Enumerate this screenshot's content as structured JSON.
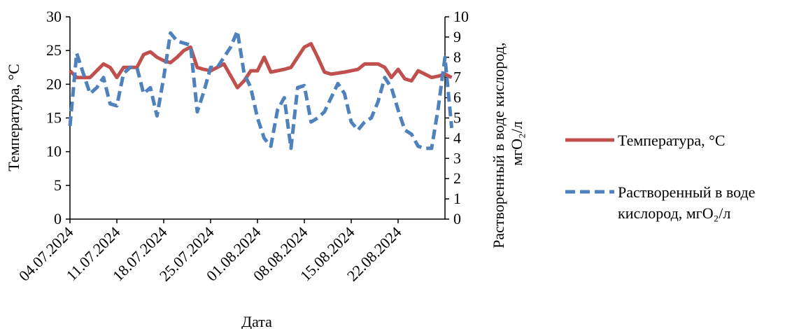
{
  "chart_data": {
    "type": "line",
    "title": "",
    "xlabel": "Дата",
    "ylabel_left": "Температура, °C",
    "ylabel_right_line1": "Растворенный в воде кислород,",
    "ylabel_right_line2": "мгО₂/л",
    "x_start": "04.07.2024",
    "x_ticks": [
      "04.07.2024",
      "11.07.2024",
      "18.07.2024",
      "25.07.2024",
      "01.08.2024",
      "08.08.2024",
      "15.08.2024",
      "22.08.2024"
    ],
    "ylim_left": [
      0,
      30
    ],
    "yticks_left": [
      "0",
      "5",
      "10",
      "15",
      "20",
      "25",
      "30"
    ],
    "ylim_right": [
      0,
      10
    ],
    "yticks_right": [
      "0",
      "1",
      "2",
      "3",
      "4",
      "5",
      "6",
      "7",
      "8",
      "9",
      "10"
    ],
    "grid": false,
    "legend_position": "right",
    "series": [
      {
        "name": "Температура, °C",
        "axis": "left",
        "color": "#C0504D",
        "style": "solid",
        "points": [
          [
            "04.07.2024",
            22.0
          ],
          [
            "05.07.2024",
            21.0
          ],
          [
            "06.07.2024",
            21.0
          ],
          [
            "07.07.2024",
            21.0
          ],
          [
            "09.07.2024",
            23.0
          ],
          [
            "10.07.2024",
            22.5
          ],
          [
            "11.07.2024",
            21.0
          ],
          [
            "12.07.2024",
            22.5
          ],
          [
            "14.07.2024",
            22.5
          ],
          [
            "15.07.2024",
            24.4
          ],
          [
            "16.07.2024",
            24.8
          ],
          [
            "17.07.2024",
            24.0
          ],
          [
            "18.07.2024",
            23.5
          ],
          [
            "19.07.2024",
            23.2
          ],
          [
            "20.07.2024",
            24.0
          ],
          [
            "21.07.2024",
            25.0
          ],
          [
            "22.07.2024",
            25.5
          ],
          [
            "23.07.2024",
            22.5
          ],
          [
            "24.07.2024",
            22.2
          ],
          [
            "25.07.2024",
            22.0
          ],
          [
            "27.07.2024",
            23.0
          ],
          [
            "29.07.2024",
            19.5
          ],
          [
            "30.07.2024",
            20.5
          ],
          [
            "31.07.2024",
            22.0
          ],
          [
            "01.08.2024",
            22.0
          ],
          [
            "02.08.2024",
            24.0
          ],
          [
            "03.08.2024",
            21.8
          ],
          [
            "05.08.2024",
            22.2
          ],
          [
            "06.08.2024",
            22.5
          ],
          [
            "07.08.2024",
            24.0
          ],
          [
            "08.08.2024",
            25.5
          ],
          [
            "09.08.2024",
            26.0
          ],
          [
            "10.08.2024",
            24.0
          ],
          [
            "11.08.2024",
            21.8
          ],
          [
            "12.08.2024",
            21.5
          ],
          [
            "14.08.2024",
            21.8
          ],
          [
            "16.08.2024",
            22.2
          ],
          [
            "17.08.2024",
            23.0
          ],
          [
            "18.08.2024",
            23.0
          ],
          [
            "19.08.2024",
            23.0
          ],
          [
            "20.08.2024",
            22.5
          ],
          [
            "21.08.2024",
            21.0
          ],
          [
            "22.08.2024",
            22.2
          ],
          [
            "23.08.2024",
            20.8
          ],
          [
            "24.08.2024",
            20.5
          ],
          [
            "25.08.2024",
            22.0
          ],
          [
            "26.08.2024",
            21.5
          ],
          [
            "27.08.2024",
            21.0
          ],
          [
            "28.08.2024",
            21.2
          ],
          [
            "29.08.2024",
            21.5
          ],
          [
            "30.08.2024",
            21.0
          ]
        ]
      },
      {
        "name": "Растворенный в воде кислород, мгО₂/л",
        "axis": "right",
        "color": "#4F81BD",
        "style": "dashed",
        "points": [
          [
            "04.07.2024",
            4.6
          ],
          [
            "05.07.2024",
            8.2
          ],
          [
            "06.07.2024",
            7.2
          ],
          [
            "07.07.2024",
            6.2
          ],
          [
            "08.07.2024",
            6.5
          ],
          [
            "09.07.2024",
            7.0
          ],
          [
            "10.07.2024",
            5.7
          ],
          [
            "11.07.2024",
            5.6
          ],
          [
            "12.07.2024",
            7.2
          ],
          [
            "13.07.2024",
            7.5
          ],
          [
            "14.07.2024",
            7.5
          ],
          [
            "15.07.2024",
            6.2
          ],
          [
            "16.07.2024",
            6.5
          ],
          [
            "17.07.2024",
            5.1
          ],
          [
            "18.07.2024",
            7.0
          ],
          [
            "19.07.2024",
            9.2
          ],
          [
            "20.07.2024",
            8.8
          ],
          [
            "21.07.2024",
            8.7
          ],
          [
            "22.07.2024",
            8.6
          ],
          [
            "23.07.2024",
            5.3
          ],
          [
            "24.07.2024",
            6.3
          ],
          [
            "25.07.2024",
            7.5
          ],
          [
            "26.07.2024",
            7.5
          ],
          [
            "27.07.2024",
            8.0
          ],
          [
            "28.07.2024",
            8.5
          ],
          [
            "29.07.2024",
            9.3
          ],
          [
            "30.07.2024",
            7.2
          ],
          [
            "31.07.2024",
            6.5
          ],
          [
            "01.08.2024",
            5.0
          ],
          [
            "02.08.2024",
            4.0
          ],
          [
            "03.08.2024",
            3.6
          ],
          [
            "04.08.2024",
            5.4
          ],
          [
            "05.08.2024",
            6.0
          ],
          [
            "06.08.2024",
            3.5
          ],
          [
            "07.08.2024",
            6.5
          ],
          [
            "08.08.2024",
            6.6
          ],
          [
            "09.08.2024",
            4.8
          ],
          [
            "10.08.2024",
            5.0
          ],
          [
            "11.08.2024",
            5.3
          ],
          [
            "12.08.2024",
            6.0
          ],
          [
            "13.08.2024",
            6.7
          ],
          [
            "14.08.2024",
            6.2
          ],
          [
            "15.08.2024",
            4.8
          ],
          [
            "16.08.2024",
            4.4
          ],
          [
            "17.08.2024",
            4.8
          ],
          [
            "18.08.2024",
            5.0
          ],
          [
            "19.08.2024",
            5.8
          ],
          [
            "20.08.2024",
            7.0
          ],
          [
            "21.08.2024",
            6.5
          ],
          [
            "22.08.2024",
            5.4
          ],
          [
            "23.08.2024",
            4.4
          ],
          [
            "24.08.2024",
            4.2
          ],
          [
            "25.08.2024",
            3.6
          ],
          [
            "26.08.2024",
            3.5
          ],
          [
            "27.08.2024",
            3.5
          ],
          [
            "28.08.2024",
            5.5
          ],
          [
            "29.08.2024",
            8.0
          ],
          [
            "30.08.2024",
            4.5
          ]
        ]
      }
    ]
  }
}
